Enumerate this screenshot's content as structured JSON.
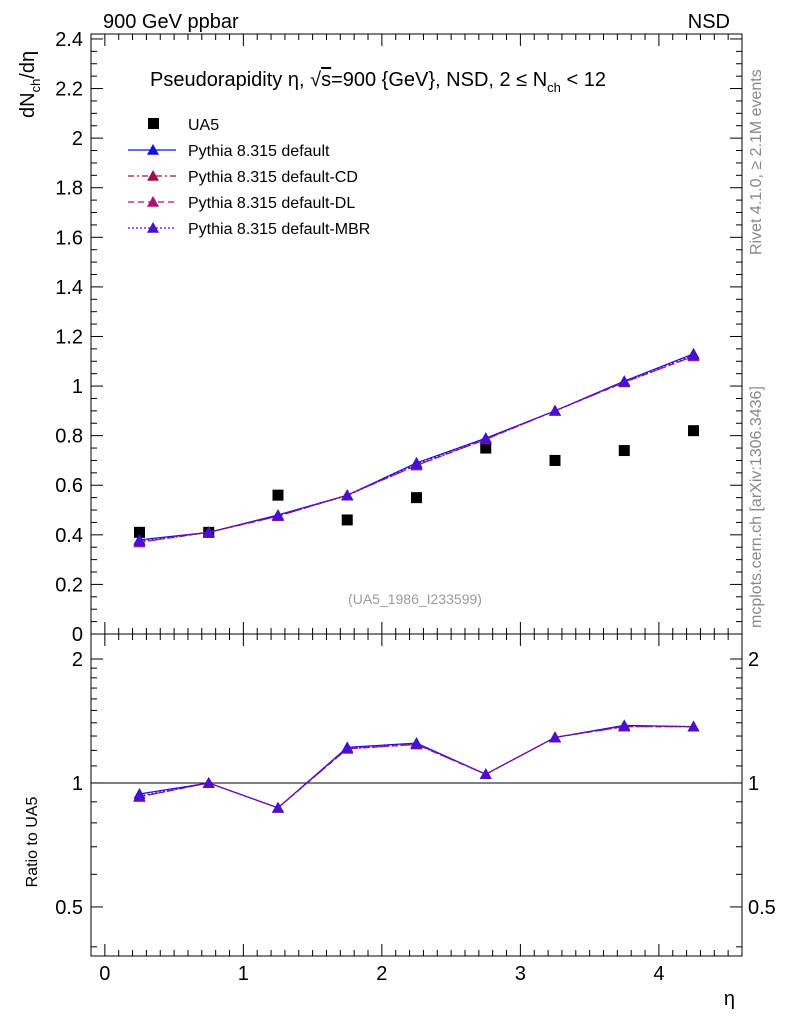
{
  "header": {
    "top_left": "900 GeV ppbar",
    "top_right": "NSD"
  },
  "side_labels": {
    "rivet": "Rivet 4.1.0, ≥ 2.1M events",
    "mcplots": "mcplots.cern.ch [arXiv:1306.3436]"
  },
  "colors": {
    "data": "#000000",
    "default": "#1010e0",
    "cd": "#a0104a",
    "dl": "#b01070",
    "mbr": "#4a10d0"
  },
  "chart_data": [
    {
      "type": "line",
      "title_parts": {
        "pre": "Pseudorapidity η, √",
        "sqrt_arg": "s",
        "mid": "=900 {GeV}, NSD, 2 ≤ N",
        "sub": "ch",
        "post": " < 12"
      },
      "ylabel_parts": {
        "a": "dN",
        "sub1": "ch",
        "b": "/dη"
      },
      "watermark": "(UA5_1986_I233599)",
      "xlim": [
        -0.1,
        4.6
      ],
      "ylim": [
        0,
        2.42
      ],
      "yticks": [
        0,
        0.2,
        0.4,
        0.6,
        0.8,
        1,
        1.2,
        1.4,
        1.6,
        1.8,
        2,
        2.2,
        2.4
      ],
      "ytick_labels": [
        "0",
        "0.2",
        "0.4",
        "0.6",
        "0.8",
        "1",
        "1.2",
        "1.4",
        "1.6",
        "1.8",
        "2",
        "2.2",
        "2.4"
      ],
      "x": [
        0.25,
        0.75,
        1.25,
        1.75,
        2.25,
        2.75,
        3.25,
        3.75,
        4.25
      ],
      "series": [
        {
          "name": "UA5",
          "kind": "data",
          "values": [
            0.41,
            0.41,
            0.56,
            0.46,
            0.55,
            0.75,
            0.7,
            0.74,
            0.82
          ]
        },
        {
          "name": "Pythia 8.315 default",
          "kind": "solid",
          "values": [
            0.38,
            0.41,
            0.48,
            0.56,
            0.69,
            0.79,
            0.9,
            1.02,
            1.13
          ]
        },
        {
          "name": "Pythia 8.315 default-CD",
          "kind": "dashdot",
          "values": [
            0.37,
            0.41,
            0.475,
            0.56,
            0.68,
            0.785,
            0.9,
            1.015,
            1.12
          ]
        },
        {
          "name": "Pythia 8.315 default-DL",
          "kind": "dashed",
          "values": [
            0.37,
            0.41,
            0.475,
            0.56,
            0.68,
            0.785,
            0.9,
            1.015,
            1.12
          ]
        },
        {
          "name": "Pythia 8.315 default-MBR",
          "kind": "dotted",
          "values": [
            0.375,
            0.41,
            0.478,
            0.558,
            0.685,
            0.787,
            0.9,
            1.017,
            1.125
          ]
        }
      ]
    },
    {
      "type": "line",
      "ylabel": "Ratio to UA5",
      "xlabel": "η",
      "scale": "log",
      "xlim": [
        -0.1,
        4.6
      ],
      "ylim": [
        0.38,
        2.3
      ],
      "xticks": [
        0,
        1,
        2,
        3,
        4
      ],
      "xtick_labels": [
        "0",
        "1",
        "2",
        "3",
        "4"
      ],
      "yticks": [
        0.5,
        1,
        2
      ],
      "ytick_labels": [
        "0.5",
        "1",
        "2"
      ],
      "reference": 1,
      "x": [
        0.25,
        0.75,
        1.25,
        1.75,
        2.25,
        2.75,
        3.25,
        3.75,
        4.25
      ],
      "series": [
        {
          "name": "Pythia 8.315 default",
          "kind": "solid",
          "values": [
            0.94,
            1.0,
            0.87,
            1.22,
            1.25,
            1.05,
            1.29,
            1.38,
            1.37
          ]
        },
        {
          "name": "Pythia 8.315 default-CD",
          "kind": "dashdot",
          "values": [
            0.925,
            1.0,
            0.87,
            1.21,
            1.24,
            1.05,
            1.29,
            1.37,
            1.37
          ]
        },
        {
          "name": "Pythia 8.315 default-DL",
          "kind": "dashed",
          "values": [
            0.925,
            1.0,
            0.87,
            1.21,
            1.24,
            1.05,
            1.29,
            1.37,
            1.37
          ]
        },
        {
          "name": "Pythia 8.315 default-MBR",
          "kind": "dotted",
          "values": [
            0.93,
            1.0,
            0.87,
            1.215,
            1.245,
            1.05,
            1.29,
            1.375,
            1.37
          ]
        }
      ]
    }
  ]
}
